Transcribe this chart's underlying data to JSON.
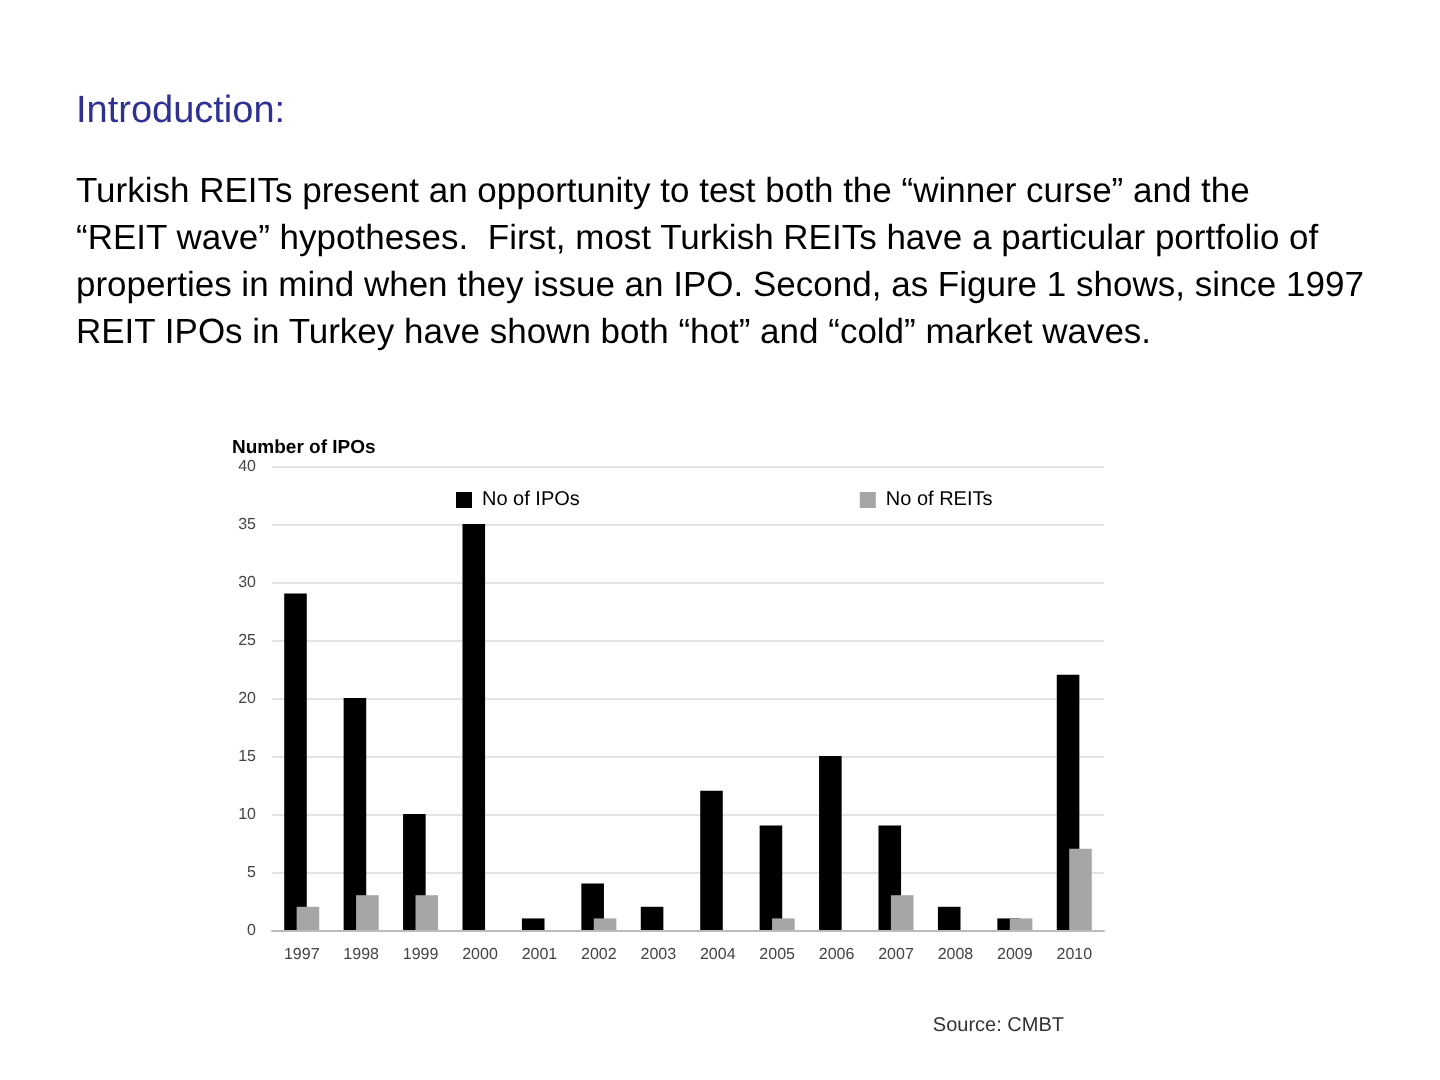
{
  "chart_data": {
    "type": "bar",
    "title": "Introduction:",
    "subtitle": "Turkish REITs present an opportunity to test both the “winner curse” and the “REIT wave” hypotheses.  First, most Turkish REITs have a particular portfolio of properties in mind when they issue an IPO. Second, as Figure 1 shows, since 1997 REIT IPOs in Turkey have shown both “hot” and “cold” market waves.",
    "ylabel": "Number of IPOs",
    "categories": [
      "1997",
      "1998",
      "1999",
      "2000",
      "2001",
      "2002",
      "2003",
      "2004",
      "2005",
      "2006",
      "2007",
      "2008",
      "2009",
      "2010"
    ],
    "series": [
      {
        "name": "No of IPOs",
        "color": "#000000",
        "values": [
          29,
          20,
          10,
          35,
          1,
          4,
          2,
          12,
          9,
          15,
          9,
          2,
          1,
          22
        ]
      },
      {
        "name": "No of REITs",
        "color": "#a6a6a6",
        "values": [
          2,
          3,
          3,
          0,
          0,
          1,
          0,
          0,
          1,
          0,
          3,
          0,
          1,
          7
        ]
      }
    ],
    "ylim": [
      0,
      40
    ],
    "yticks": [
      0,
      5,
      10,
      15,
      20,
      25,
      30,
      35,
      40
    ],
    "grid": "y",
    "legend": "top",
    "annotations": [
      "Source: CMBT"
    ]
  }
}
